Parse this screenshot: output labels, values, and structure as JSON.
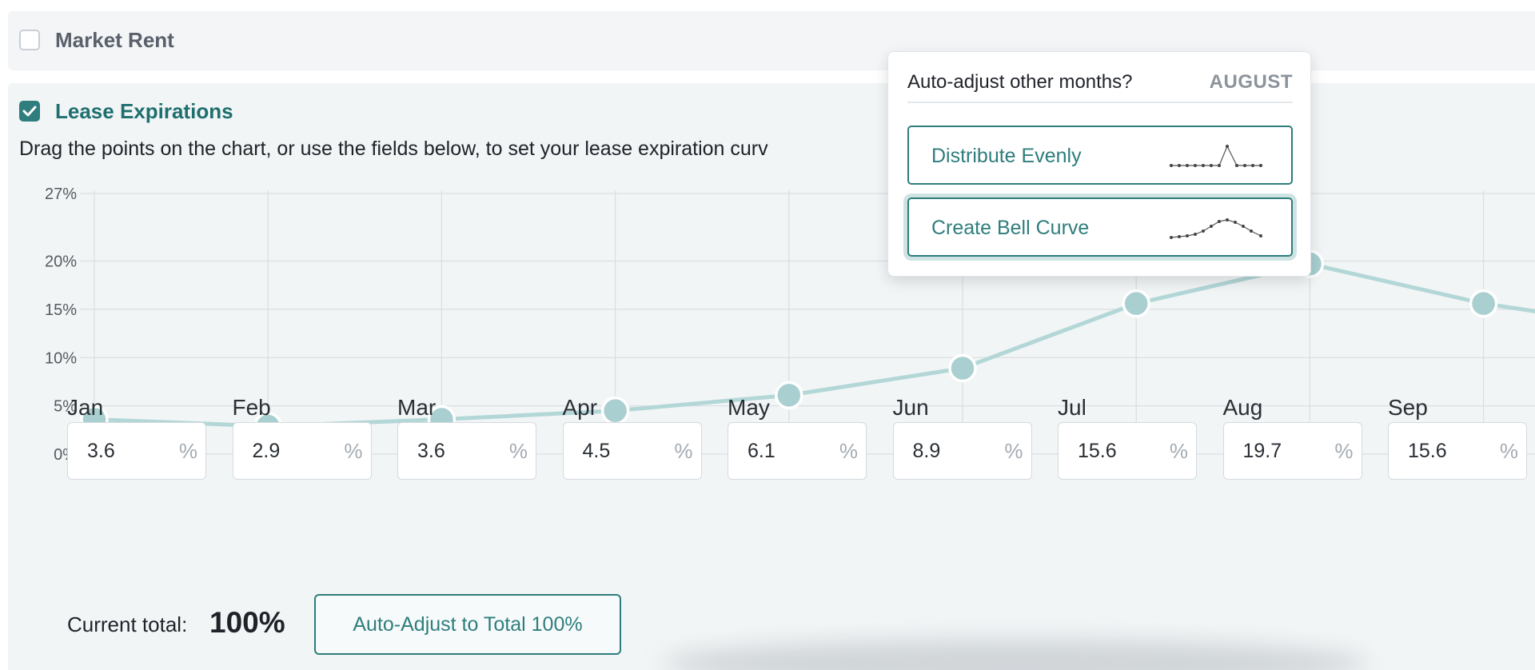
{
  "market_rent": {
    "label": "Market Rent",
    "checked": false
  },
  "lease_expirations": {
    "label": "Lease Expirations",
    "checked": true,
    "instructions": "Drag the points on the chart, or use the fields below, to set your lease expiration curv"
  },
  "chart_data": {
    "type": "line",
    "y_ticks": [
      "0%",
      "5%",
      "10%",
      "15%",
      "20%",
      "27%"
    ],
    "ylim": [
      0,
      27
    ],
    "categories": [
      "Jan",
      "Feb",
      "Mar",
      "Apr",
      "May",
      "Jun",
      "Jul",
      "Aug",
      "Sep"
    ],
    "values": [
      3.6,
      2.9,
      3.6,
      4.5,
      6.1,
      8.9,
      15.6,
      19.7,
      15.6
    ],
    "grid": true,
    "line_color": "#b3d7d7"
  },
  "months": [
    {
      "name": "Jan",
      "value": "3.6",
      "unit": "%"
    },
    {
      "name": "Feb",
      "value": "2.9",
      "unit": "%"
    },
    {
      "name": "Mar",
      "value": "3.6",
      "unit": "%"
    },
    {
      "name": "Apr",
      "value": "4.5",
      "unit": "%"
    },
    {
      "name": "May",
      "value": "6.1",
      "unit": "%"
    },
    {
      "name": "Jun",
      "value": "8.9",
      "unit": "%"
    },
    {
      "name": "Jul",
      "value": "15.6",
      "unit": "%"
    },
    {
      "name": "Aug",
      "value": "19.7",
      "unit": "%"
    },
    {
      "name": "Sep",
      "value": "15.6",
      "unit": "%"
    }
  ],
  "total": {
    "label": "Current total:",
    "value": "100%"
  },
  "auto_adjust_button": "Auto-Adjust to Total 100%",
  "popover": {
    "title": "Auto-adjust other months?",
    "month": "AUGUST",
    "options": [
      {
        "label": "Distribute Evenly",
        "icon": "flat-spike-sparkline-icon"
      },
      {
        "label": "Create Bell Curve",
        "icon": "bell-curve-sparkline-icon"
      }
    ]
  },
  "colors": {
    "accent": "#2f7d7d",
    "point": "#a9cfd0",
    "panel": "#f1f5f6"
  }
}
